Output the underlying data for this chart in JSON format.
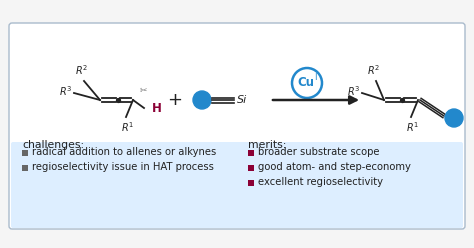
{
  "bg_color": "#f5f5f5",
  "box_bg_color": "#ddeeff",
  "box_edge_color": "#aabbcc",
  "blue_color": "#2288cc",
  "dark_red_color": "#8b0035",
  "gray_color": "#777777",
  "dark_gray_color": "#666666",
  "black": "#222222",
  "challenges_title": "challenges:",
  "challenges": [
    "radical addition to allenes or alkynes",
    "regioselectivity issue in HAT process"
  ],
  "merits_title": "merits:",
  "merits": [
    "broader substrate scope",
    "good atom- and step-economy",
    "excellent regioselectivity"
  ],
  "font_size_label": 7.2,
  "font_size_title": 7.8
}
